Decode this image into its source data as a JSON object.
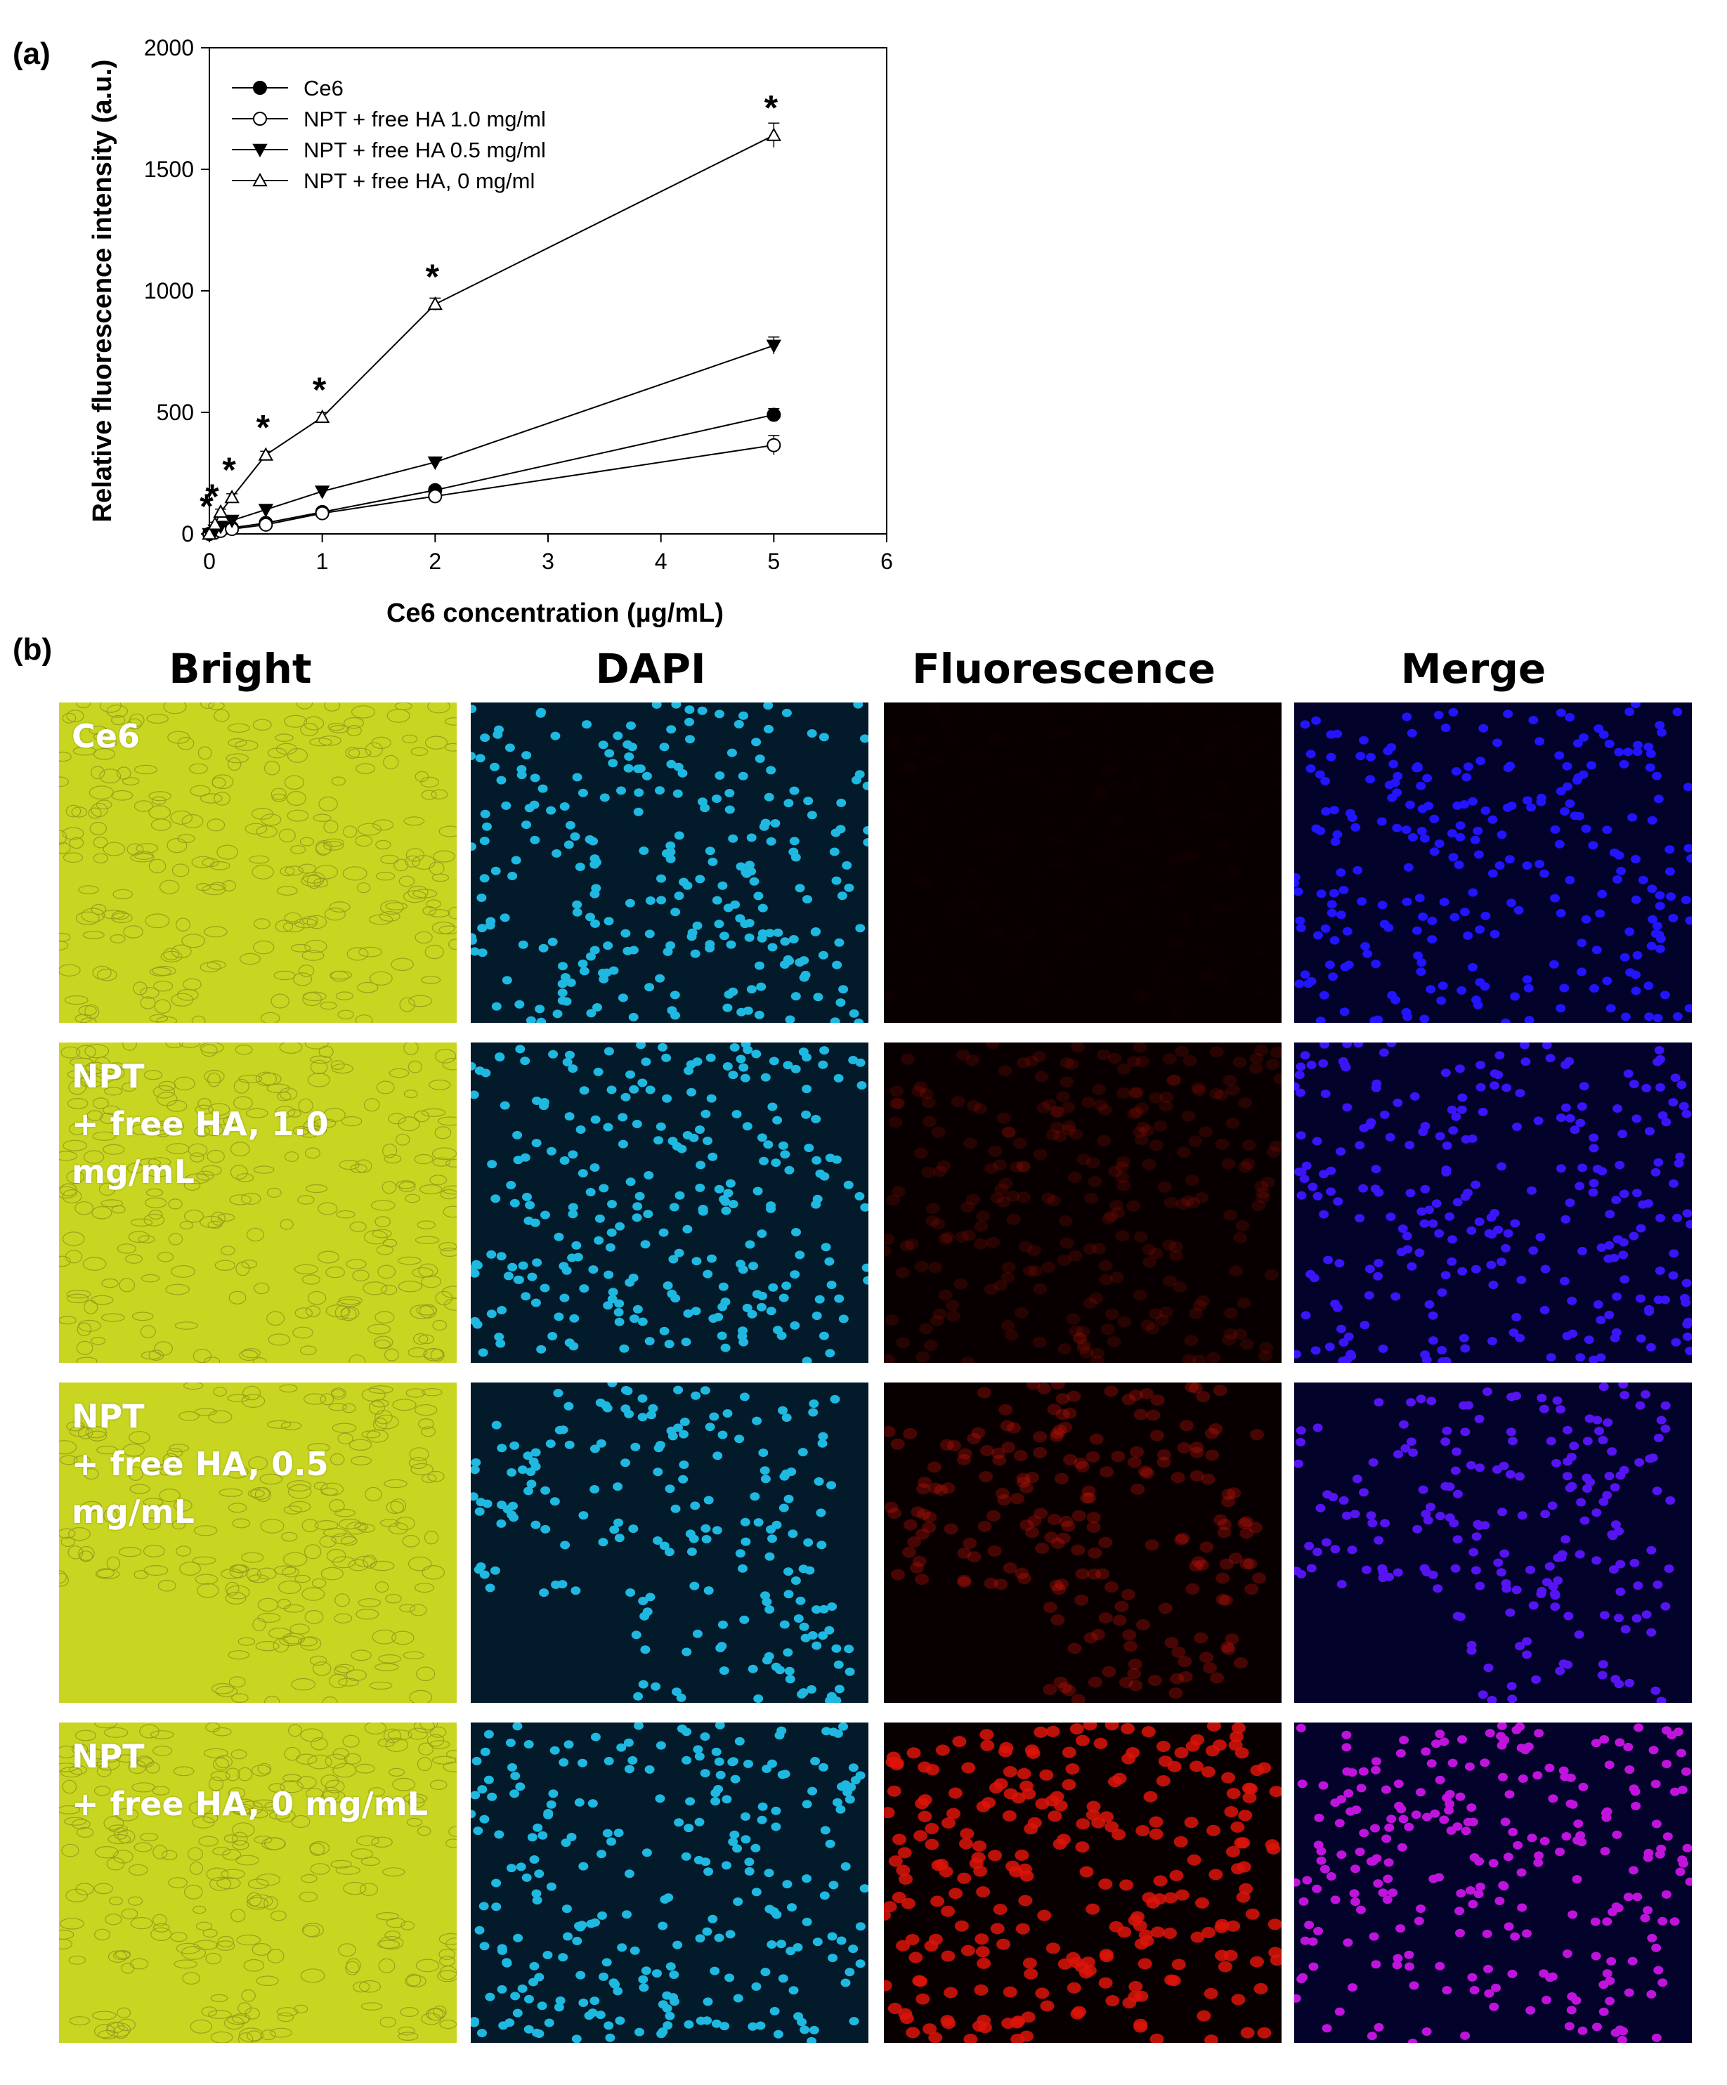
{
  "panel_a_label": "(a)",
  "panel_b_label": "(b)",
  "chart_data": {
    "type": "line",
    "xlabel": "Ce6 concentration (µg/mL)",
    "ylabel": "Relative fluorescence intensity (a.u.)",
    "xlim": [
      0,
      6
    ],
    "ylim": [
      0,
      2000
    ],
    "xticks": [
      "0",
      "1",
      "2",
      "3",
      "4",
      "5",
      "6"
    ],
    "yticks": [
      "0",
      "500",
      "1000",
      "1500",
      "2000"
    ],
    "legend_position": "top-left",
    "x": [
      0,
      0.05,
      0.1,
      0.2,
      0.5,
      1,
      2,
      5
    ],
    "series": [
      {
        "name": "Ce6",
        "marker": "circle-filled",
        "values": [
          0,
          8,
          15,
          25,
          45,
          90,
          180,
          490
        ],
        "errors": [
          5,
          5,
          6,
          6,
          8,
          10,
          15,
          25
        ]
      },
      {
        "name": "NPT + free HA 1.0 mg/ml",
        "marker": "circle-open",
        "values": [
          0,
          6,
          12,
          20,
          38,
          85,
          155,
          365
        ],
        "errors": [
          5,
          5,
          6,
          6,
          8,
          10,
          15,
          40
        ]
      },
      {
        "name": "NPT + free HA 0.5 mg/ml",
        "marker": "triangle-down-filled",
        "values": [
          0,
          15,
          30,
          55,
          100,
          175,
          295,
          775
        ],
        "errors": [
          5,
          6,
          8,
          10,
          12,
          15,
          20,
          35
        ]
      },
      {
        "name": "NPT + free HA, 0 mg/ml",
        "marker": "triangle-up-open",
        "values": [
          0,
          40,
          90,
          150,
          325,
          480,
          945,
          1640
        ],
        "errors": [
          5,
          8,
          12,
          15,
          15,
          20,
          25,
          50
        ]
      }
    ],
    "annotations": [
      {
        "text": "*",
        "x": 0,
        "y": 0
      },
      {
        "text": "*",
        "x": 0.05,
        "y": 40
      },
      {
        "text": "*",
        "x": 0.2,
        "y": 150
      },
      {
        "text": "*",
        "x": 0.5,
        "y": 325
      },
      {
        "text": "*",
        "x": 1,
        "y": 480
      },
      {
        "text": "*",
        "x": 2,
        "y": 945
      },
      {
        "text": "*",
        "x": 5,
        "y": 1640
      }
    ]
  },
  "micrographs": {
    "columns": [
      "Bright",
      "DAPI",
      "Fluorescence",
      "Merge"
    ],
    "rows": [
      {
        "label_lines": [
          "Ce6"
        ],
        "red_level": 0.02
      },
      {
        "label_lines": [
          "NPT",
          "+ free HA, 1.0 mg/mL"
        ],
        "red_level": 0.15
      },
      {
        "label_lines": [
          "NPT",
          "+ free HA, 0.5 mg/mL"
        ],
        "red_level": 0.3
      },
      {
        "label_lines": [
          "NPT",
          "+ free HA, 0 mg/mL"
        ],
        "red_level": 0.85
      }
    ]
  }
}
